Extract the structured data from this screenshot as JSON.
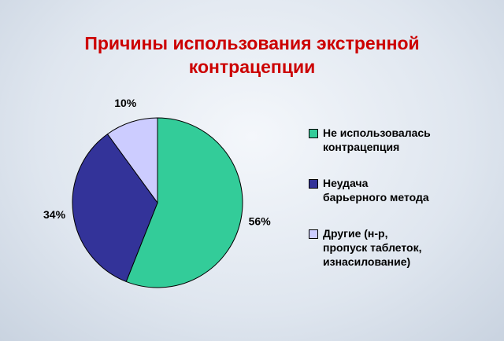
{
  "chart_data": {
    "type": "pie",
    "title": "Причины использования экстренной контрацепции",
    "categories": [
      "Не использовалась контрацепция",
      "Неудача барьерного метода",
      "Другие  (н-р, пропуск таблеток, изнасилование)"
    ],
    "values": [
      56,
      34,
      10
    ],
    "value_labels": [
      "56%",
      "34%",
      "10%"
    ],
    "colors": [
      "#33cc99",
      "#333399",
      "#ccccff"
    ],
    "legend": "right"
  }
}
